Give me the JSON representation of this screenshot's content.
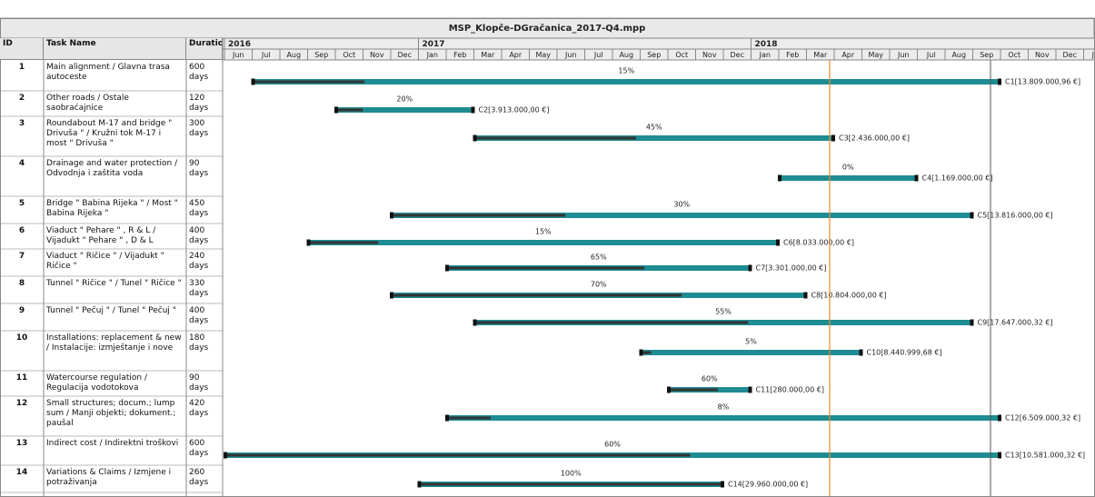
{
  "chart_data": {
    "type": "gantt",
    "title": "MSP_Klopče-DGračanica_2017-Q4.mpp",
    "columns": [
      "ID",
      "Task Name",
      "Duration"
    ],
    "xlim": [
      "2016-06",
      "2019-02"
    ],
    "years": [
      2016,
      2017,
      2018
    ],
    "months": [
      "Jun",
      "Jul",
      "Aug",
      "Sep",
      "Oct",
      "Nov",
      "Dec",
      "Jan",
      "Feb",
      "Mar",
      "Apr",
      "May",
      "Jun",
      "Jul",
      "Aug",
      "Sep",
      "Oct",
      "Nov",
      "Dec",
      "Jan",
      "Feb",
      "Mar",
      "Apr",
      "May",
      "Jun",
      "Jul",
      "Aug",
      "Sep",
      "Oct",
      "Nov",
      "Dec",
      "Jan"
    ],
    "color": "#1e8c92",
    "progress_color": "#333333",
    "tasks": [
      {
        "id": 1,
        "name": "Main alignment / Glavna trasa autoceste",
        "duration": "600 days",
        "start": "2016-07",
        "end": "2018-10",
        "progress": 15,
        "progress_label": "15%",
        "cost": "C1[13.809.000,96 €]"
      },
      {
        "id": 2,
        "name": "Other roads / Ostale saobraćajnice",
        "duration": "120 days",
        "start": "2016-10",
        "end": "2017-03",
        "progress": 20,
        "progress_label": "20%",
        "cost": "C2[3.913.000,00 €]"
      },
      {
        "id": 3,
        "name": "Roundabout M-17 and bridge \" Drivuša \" / Kružni tok M-17 i most \" Drivuša \"",
        "duration": "300 days",
        "start": "2017-03",
        "end": "2018-04",
        "progress": 45,
        "progress_label": "45%",
        "cost": "C3[2.436.000,00 €]"
      },
      {
        "id": 4,
        "name": "Drainage and water protection / Odvodnja i zaštita voda",
        "duration": "90 days",
        "start": "2018-02",
        "end": "2018-07",
        "progress": 0,
        "progress_label": "0%",
        "cost": "C4[1.169.000,00 €]"
      },
      {
        "id": 5,
        "name": "Bridge \" Babina Rijeka \" / Most \" Babina Rijeka \"",
        "duration": "450 days",
        "start": "2016-12",
        "end": "2018-09",
        "progress": 30,
        "progress_label": "30%",
        "cost": "C5[13.816.000,00 €]"
      },
      {
        "id": 6,
        "name": "Viaduct \" Pehare \" , R & L / Vijadukt \" Pehare \" , D & L",
        "duration": "400 days",
        "start": "2016-09",
        "end": "2018-02",
        "progress": 15,
        "progress_label": "15%",
        "cost": "C6[8.033.000,00 €]"
      },
      {
        "id": 7,
        "name": "Viaduct \" Ričice \" / Vijadukt \" Ričice \"",
        "duration": "240 days",
        "start": "2017-02",
        "end": "2018-01",
        "progress": 65,
        "progress_label": "65%",
        "cost": "C7[3.301.000,00 €]"
      },
      {
        "id": 8,
        "name": "Tunnel \" Ričice \" / Tunel \" Ričice \"",
        "duration": "330 days",
        "start": "2016-12",
        "end": "2018-03",
        "progress": 70,
        "progress_label": "70%",
        "cost": "C8[10.804.000,00 €]"
      },
      {
        "id": 9,
        "name": "Tunnel \" Pečuj \" / Tunel \" Pečuj \"",
        "duration": "400 days",
        "start": "2017-03",
        "end": "2018-09",
        "progress": 55,
        "progress_label": "55%",
        "cost": "C9[17.647.000,32 €]"
      },
      {
        "id": 10,
        "name": "Installations: replacement & new / Instalacije: izmještanje i nove",
        "duration": "180 days",
        "start": "2017-09",
        "end": "2018-05",
        "progress": 5,
        "progress_label": "5%",
        "cost": "C10[8.440.999,68 €]"
      },
      {
        "id": 11,
        "name": "Watercourse regulation / Regulacija vodotokova",
        "duration": "90 days",
        "start": "2017-10",
        "end": "2018-01",
        "progress": 60,
        "progress_label": "60%",
        "cost": "C11[280.000,00 €]"
      },
      {
        "id": 12,
        "name": "Small structures; docum.; lump sum / Manji objekti; dokument.; paušal",
        "duration": "420 days",
        "start": "2017-02",
        "end": "2018-10",
        "progress": 8,
        "progress_label": "8%",
        "cost": "C12[6.509.000,32 €]"
      },
      {
        "id": 13,
        "name": "Indirect cost / Indirektni troškovi",
        "duration": "600 days",
        "start": "2016-06",
        "end": "2018-10",
        "progress": 60,
        "progress_label": "60%",
        "cost": "C13[10.581.000,32 €]"
      },
      {
        "id": 14,
        "name": "Variations & Claims / Izmjene i potraživanja",
        "duration": "260 days",
        "start": "2017-01",
        "end": "2017-12",
        "progress": 100,
        "progress_label": "100%",
        "cost": "C14[29.960.000,00 €]"
      }
    ]
  }
}
